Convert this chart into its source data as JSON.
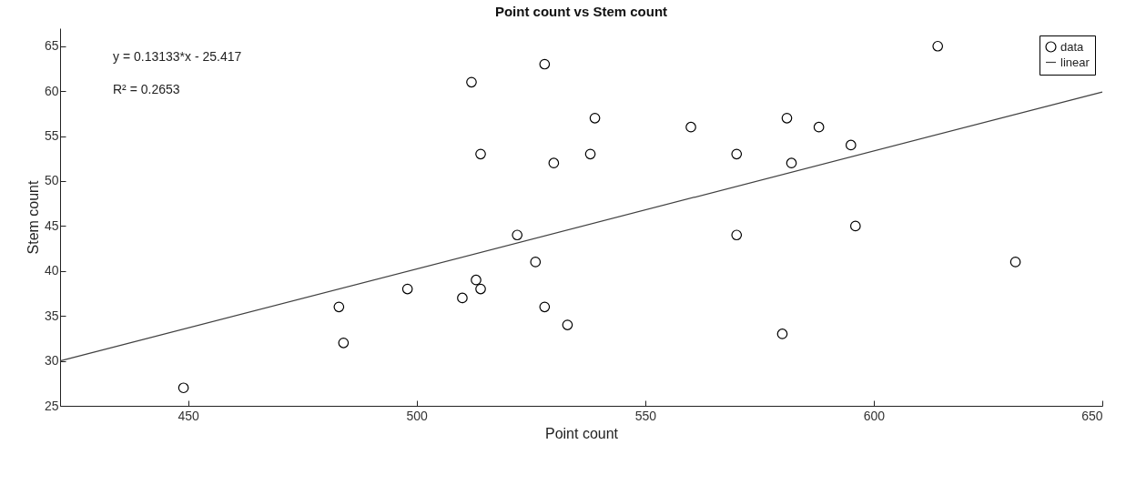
{
  "chart_data": {
    "type": "scatter",
    "title": "Point count vs Stem count",
    "xlabel": "Point count",
    "ylabel": "Stem count",
    "xlim": [
      422,
      650
    ],
    "xticks": [
      450,
      500,
      550,
      600,
      650
    ],
    "ylim": [
      25,
      67
    ],
    "yticks": [
      25,
      30,
      35,
      40,
      45,
      50,
      55,
      60,
      65
    ],
    "grid": false,
    "legend": "top right",
    "annotations": [
      "y = 0.13133*x - 25.417",
      "R² = 0.2653"
    ],
    "series": [
      {
        "name": "data",
        "type": "scatter",
        "marker": "circle",
        "color": "#000000",
        "x": [
          449,
          483,
          484,
          498,
          510,
          512,
          513,
          514,
          514,
          522,
          526,
          528,
          528,
          530,
          533,
          538,
          539,
          560,
          570,
          570,
          580,
          581,
          582,
          588,
          595,
          596,
          614,
          631
        ],
        "values": [
          27,
          36,
          32,
          38,
          37,
          61,
          39,
          53,
          38,
          44,
          41,
          63,
          36,
          52,
          34,
          53,
          57,
          56,
          53,
          44,
          33,
          57,
          52,
          56,
          54,
          45,
          65,
          41
        ]
      },
      {
        "name": "linear",
        "type": "line",
        "color": "#404040",
        "x": [
          422,
          650
        ],
        "values": [
          30,
          59.9
        ]
      }
    ]
  }
}
